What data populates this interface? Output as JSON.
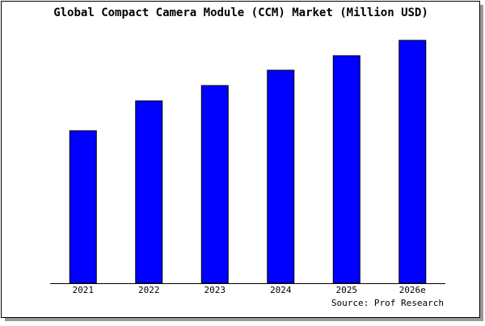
{
  "chart_data": {
    "type": "bar",
    "title": "Global Compact Camera Module (CCM) Market (Million USD)",
    "categories": [
      "2021",
      "2022",
      "2023",
      "2024",
      "2025",
      "2026e"
    ],
    "values": [
      189,
      226,
      245,
      264,
      282,
      301
    ],
    "color": "#0000ff",
    "ylim": [
      0,
      310
    ],
    "source": "Source: Prof Research"
  }
}
